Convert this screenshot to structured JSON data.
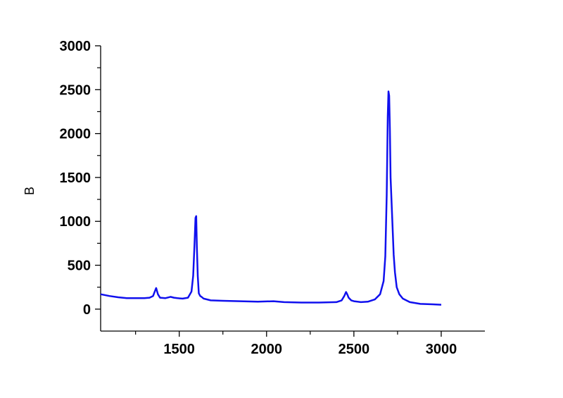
{
  "chart_data": {
    "type": "line",
    "title": "",
    "xlabel": "",
    "ylabel": "B",
    "xlim": [
      1050,
      3250
    ],
    "ylim": [
      -250,
      3000
    ],
    "x_ticks": [
      1500,
      2000,
      2500,
      3000
    ],
    "y_ticks": [
      0,
      500,
      1000,
      1500,
      2000,
      2500,
      3000
    ],
    "grid": false,
    "line_color": "#1010ee",
    "series": [
      {
        "x": [
          1050,
          1100,
          1150,
          1200,
          1250,
          1300,
          1330,
          1350,
          1360,
          1368,
          1378,
          1390,
          1420,
          1450,
          1470,
          1490,
          1520,
          1550,
          1570,
          1580,
          1588,
          1593,
          1597,
          1601,
          1606,
          1612,
          1620,
          1628,
          1640,
          1680,
          1750,
          1850,
          1950,
          2040,
          2100,
          2200,
          2300,
          2400,
          2430,
          2445,
          2455,
          2462,
          2470,
          2485,
          2500,
          2540,
          2580,
          2620,
          2650,
          2670,
          2680,
          2688,
          2694,
          2698,
          2702,
          2706,
          2710,
          2716,
          2722,
          2728,
          2735,
          2745,
          2760,
          2780,
          2820,
          2880,
          2950,
          3000
        ],
        "values": [
          170,
          150,
          135,
          125,
          125,
          125,
          130,
          150,
          200,
          240,
          170,
          130,
          125,
          140,
          130,
          125,
          120,
          130,
          200,
          380,
          760,
          1040,
          1060,
          720,
          380,
          180,
          150,
          140,
          120,
          100,
          95,
          90,
          85,
          90,
          80,
          75,
          75,
          80,
          100,
          150,
          195,
          170,
          130,
          100,
          90,
          80,
          85,
          110,
          170,
          320,
          600,
          1300,
          2200,
          2480,
          2430,
          2050,
          1500,
          1200,
          900,
          620,
          420,
          250,
          170,
          120,
          80,
          60,
          55,
          50
        ]
      }
    ]
  }
}
